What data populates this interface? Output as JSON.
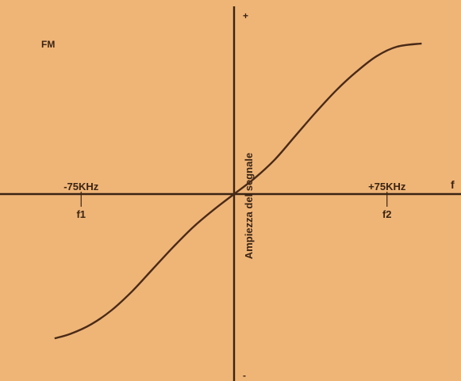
{
  "chart_data": {
    "type": "line",
    "title": "FM",
    "xlabel": "f",
    "ylabel": "Ampiezza del segnale",
    "y_positive_label": "+",
    "y_negative_label": "-",
    "xlim": [
      -100,
      100
    ],
    "ylim": [
      -1.1,
      1.1
    ],
    "x_ticks": [
      {
        "value": -75,
        "label": "-75KHz",
        "name": "f1"
      },
      {
        "value": 75,
        "label": "+75KHz",
        "name": "f2"
      }
    ],
    "grid": false,
    "series": [
      {
        "color": "#4a2a18",
        "x": [
          -88,
          -80,
          -70,
          -60,
          -50,
          -40,
          -30,
          -20,
          -10,
          0,
          10,
          20,
          30,
          40,
          50,
          60,
          70,
          80,
          92
        ],
        "y": [
          -0.92,
          -0.89,
          -0.83,
          -0.74,
          -0.62,
          -0.48,
          -0.34,
          -0.21,
          -0.1,
          0,
          0.1,
          0.22,
          0.37,
          0.52,
          0.66,
          0.78,
          0.88,
          0.94,
          0.96
        ]
      }
    ]
  }
}
